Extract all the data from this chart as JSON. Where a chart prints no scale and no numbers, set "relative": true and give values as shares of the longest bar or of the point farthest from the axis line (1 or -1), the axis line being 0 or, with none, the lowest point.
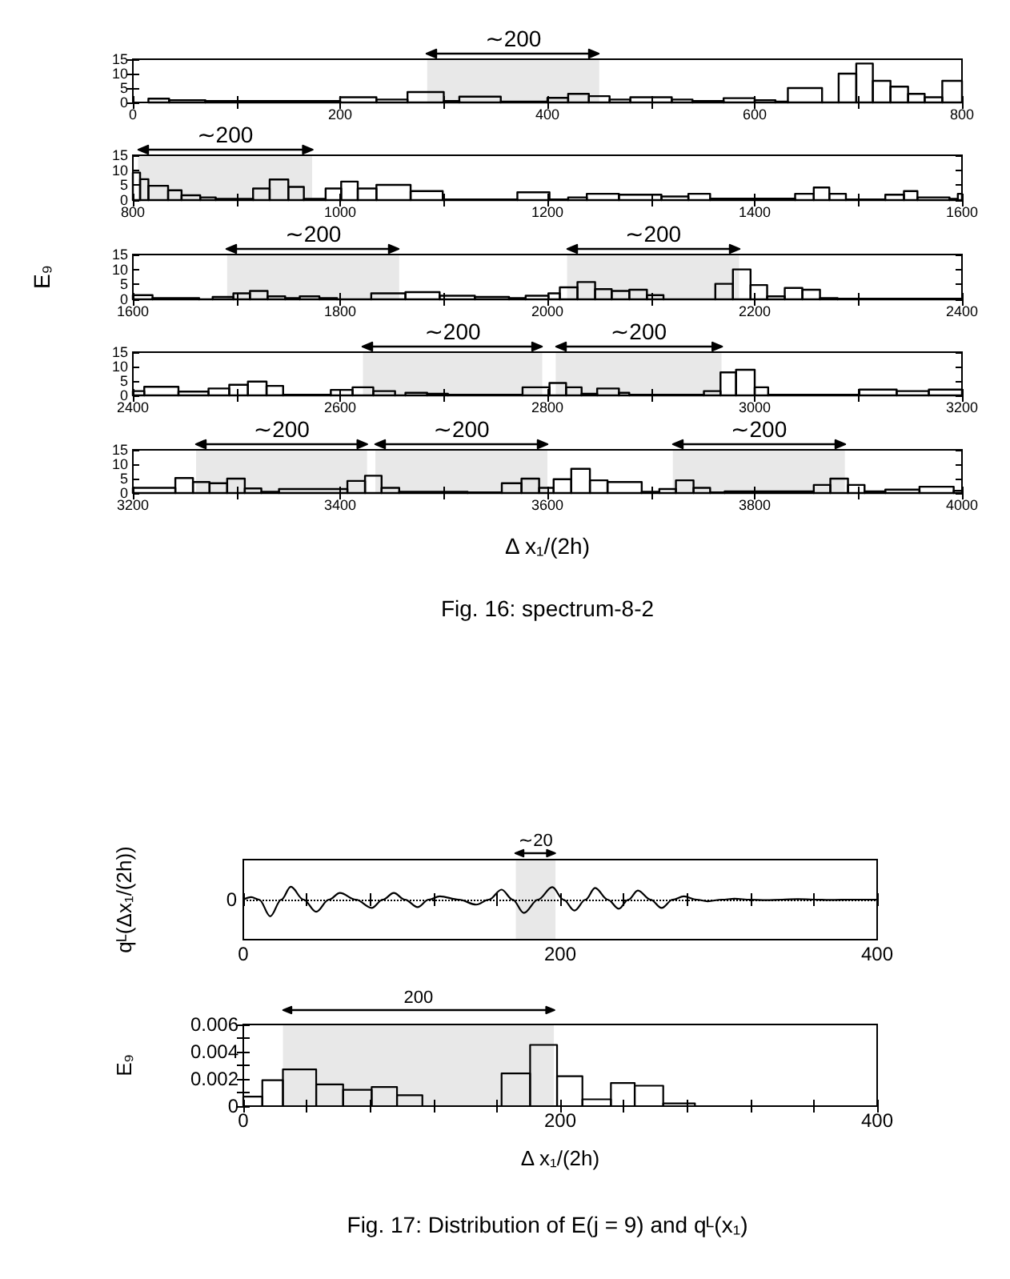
{
  "chart_data": [
    {
      "type": "histogram",
      "color": "#000000",
      "bins": [
        15,
        35,
        70,
        200,
        235,
        265,
        300,
        315,
        355,
        400,
        420,
        440,
        460,
        480,
        520,
        540,
        570,
        600,
        620,
        632,
        665,
        681,
        698,
        714,
        731,
        748,
        764,
        781,
        800
      ],
      "values": [
        1.3,
        0.8,
        0.5,
        1.8,
        1,
        3.6,
        0.5,
        2,
        0.3,
        1.6,
        3,
        2.2,
        1,
        1.8,
        1,
        0.5,
        1.5,
        0.8,
        0.3,
        5,
        0,
        10,
        13.5,
        7.5,
        5.5,
        3,
        1.8,
        7.5
      ],
      "xlim": [
        0,
        800
      ],
      "xticks": [
        0,
        {
          "value": 100,
          "label": null
        },
        200,
        {
          "value": 300,
          "label": null
        },
        400,
        {
          "value": 500,
          "label": null
        },
        600,
        {
          "value": 700,
          "label": null
        },
        800
      ],
      "ylim": [
        0,
        15
      ],
      "yticks": [
        0,
        5,
        10,
        15
      ],
      "bands": [
        {
          "axis": "x",
          "from": 284,
          "to": 450,
          "label": "∼200"
        }
      ]
    },
    {
      "type": "histogram",
      "color": "#000000",
      "bins": [
        800,
        807,
        815,
        834,
        847,
        865,
        880,
        916,
        932,
        950,
        965,
        986,
        1001,
        1017,
        1035,
        1068,
        1099,
        1171,
        1202,
        1220,
        1238,
        1269,
        1310,
        1336,
        1357,
        1439,
        1457,
        1472,
        1488,
        1526,
        1544,
        1557,
        1588,
        1596,
        1600
      ],
      "values": [
        9.2,
        7,
        4.8,
        3.3,
        1.6,
        0.9,
        0.4,
        3.9,
        6.9,
        4.4,
        0.4,
        3.9,
        6.2,
        3.9,
        5.1,
        3,
        0.2,
        2.6,
        0.2,
        0.9,
        2.1,
        1.8,
        1.2,
        2.1,
        0.5,
        2.1,
        4.2,
        2.1,
        0.2,
        1.8,
        3,
        0.9,
        0.4,
        2.1
      ],
      "xlim": [
        800,
        1600
      ],
      "xticks": [
        800,
        {
          "value": 900,
          "label": null
        },
        1000,
        {
          "value": 1100,
          "label": null
        },
        1200,
        {
          "value": 1300,
          "label": null
        },
        1400,
        {
          "value": 1500,
          "label": null
        },
        1600
      ],
      "ylim": [
        0,
        15
      ],
      "yticks": [
        0,
        5,
        10,
        15
      ],
      "bands": [
        {
          "axis": "x",
          "from": 805,
          "to": 973,
          "label": "∼200"
        }
      ]
    },
    {
      "type": "histogram",
      "color": "#000000",
      "ylabel": "E₉",
      "bins": [
        1600,
        1619,
        1664,
        1677,
        1697,
        1713,
        1730,
        1747,
        1761,
        1780,
        1797,
        1830,
        1863,
        1896,
        1930,
        1963,
        1979,
        2001,
        2012,
        2029,
        2046,
        2062,
        2079,
        2096,
        2112,
        2162,
        2179,
        2196,
        2212,
        2229,
        2246,
        2263,
        2280,
        2400
      ],
      "values": [
        1.4,
        0.4,
        0,
        0.8,
        2,
        2.8,
        1,
        0.4,
        1,
        0.4,
        0,
        2,
        2.4,
        1.2,
        0.8,
        0.4,
        1.2,
        2,
        4,
        5.8,
        3.4,
        2.8,
        3.2,
        1.4,
        0,
        5.2,
        10,
        4.8,
        1,
        3.8,
        3.2,
        0.4,
        0.2
      ],
      "xlim": [
        1600,
        2400
      ],
      "xticks": [
        1600,
        {
          "value": 1700,
          "label": null
        },
        1800,
        {
          "value": 1900,
          "label": null
        },
        2000,
        {
          "value": 2100,
          "label": null
        },
        2200,
        {
          "value": 2300,
          "label": null
        },
        2400
      ],
      "ylim": [
        0,
        15
      ],
      "yticks": [
        0,
        5,
        10,
        15
      ],
      "bands": [
        {
          "axis": "x",
          "from": 1691,
          "to": 1857,
          "label": "∼200"
        },
        {
          "axis": "x",
          "from": 2019,
          "to": 2185,
          "label": "∼200"
        }
      ]
    },
    {
      "type": "histogram",
      "color": "#000000",
      "bins": [
        2400,
        2411,
        2444,
        2473,
        2493,
        2511,
        2529,
        2545,
        2591,
        2612,
        2632,
        2653,
        2663,
        2684,
        2704,
        2776,
        2802,
        2818,
        2833,
        2848,
        2869,
        2879,
        2951,
        2967,
        2982,
        3000,
        3013,
        3101,
        3137,
        3168,
        3200
      ],
      "values": [
        1.5,
        3,
        1.3,
        2.4,
        3.7,
        4.8,
        3.3,
        0.2,
        1.9,
        2.8,
        1.5,
        0,
        0.9,
        0.6,
        0.2,
        2.8,
        4.3,
        2.8,
        0.6,
        2.4,
        0.9,
        0.2,
        1.5,
        8,
        8.9,
        2.8,
        0.2,
        2,
        1.5,
        2
      ],
      "xlim": [
        2400,
        3200
      ],
      "xticks": [
        2400,
        {
          "value": 2500,
          "label": null
        },
        2600,
        {
          "value": 2700,
          "label": null
        },
        2800,
        {
          "value": 2900,
          "label": null
        },
        3000,
        {
          "value": 3100,
          "label": null
        },
        3200
      ],
      "ylim": [
        0,
        15
      ],
      "yticks": [
        0,
        5,
        10,
        15
      ],
      "bands": [
        {
          "axis": "x",
          "from": 2622,
          "to": 2795,
          "label": "∼200"
        },
        {
          "axis": "x",
          "from": 2808,
          "to": 2968,
          "label": "∼200"
        }
      ]
    },
    {
      "type": "histogram",
      "color": "#000000",
      "xlabel": "Δ x₁/(2h)",
      "bins": [
        3200,
        3241,
        3258,
        3274,
        3291,
        3308,
        3324,
        3341,
        3407,
        3424,
        3440,
        3457,
        3523,
        3556,
        3575,
        3592,
        3606,
        3623,
        3641,
        3658,
        3691,
        3708,
        3724,
        3741,
        3757,
        3771,
        3857,
        3873,
        3890,
        3906,
        3926,
        3959,
        3992,
        4000
      ],
      "values": [
        1.8,
        5.2,
        3.8,
        3.4,
        5,
        1.6,
        0.4,
        1.4,
        4.2,
        6,
        1.8,
        0.4,
        0.2,
        3.4,
        5,
        1.8,
        4.8,
        8.4,
        4.4,
        3.8,
        0.4,
        1.4,
        4.4,
        1.8,
        0.2,
        0.6,
        2.8,
        5,
        2.8,
        0.6,
        1.2,
        2.2,
        0.8
      ],
      "xlim": [
        3200,
        4000
      ],
      "xticks": [
        3200,
        {
          "value": 3300,
          "label": null
        },
        3400,
        {
          "value": 3500,
          "label": null
        },
        3600,
        {
          "value": 3700,
          "label": null
        },
        3800,
        {
          "value": 3900,
          "label": null
        },
        4000
      ],
      "ylim": [
        0,
        15
      ],
      "yticks": [
        0,
        5,
        10,
        15
      ],
      "bands": [
        {
          "axis": "x",
          "from": 3261,
          "to": 3426,
          "label": "∼200"
        },
        {
          "axis": "x",
          "from": 3434,
          "to": 3600,
          "label": "∼200"
        },
        {
          "axis": "x",
          "from": 3721,
          "to": 3887,
          "label": "∼200"
        }
      ],
      "annotations": [
        "Fig. 16: spectrum-8-2"
      ]
    },
    {
      "type": "line",
      "color": "#000000",
      "relative": true,
      "marker": "none",
      "ylabel": "qᴸ(Δx₁/(2h))",
      "x": [
        0,
        5,
        10,
        17,
        24,
        30,
        38,
        46,
        54,
        61,
        71,
        81,
        88,
        95,
        102,
        110,
        117,
        124,
        136,
        147,
        155,
        163,
        170,
        177,
        186,
        195,
        202,
        209,
        216,
        222,
        230,
        237,
        243,
        249,
        257,
        264,
        271,
        278,
        286,
        293,
        302,
        310,
        320,
        330,
        340,
        350,
        360,
        370,
        385,
        400
      ],
      "values": [
        0,
        0.15,
        0,
        -1,
        0,
        0.77,
        0,
        -0.73,
        0,
        0.4,
        0,
        -0.5,
        0,
        0.4,
        0,
        -0.45,
        0,
        0.2,
        0,
        -0.3,
        0,
        0.6,
        0,
        -0.8,
        0,
        0.75,
        0,
        -0.65,
        0,
        0.7,
        0,
        -0.55,
        0,
        0.55,
        0,
        -0.5,
        0,
        0.2,
        0,
        -0.1,
        0,
        0.05,
        0,
        -0.03,
        0,
        0.03,
        0,
        -0.02,
        0,
        0
      ],
      "xlim": [
        0,
        400
      ],
      "xticks": [
        0,
        {
          "value": 40,
          "label": null
        },
        {
          "value": 80,
          "label": null
        },
        {
          "value": 120,
          "label": null
        },
        {
          "value": 160,
          "label": null
        },
        200,
        {
          "value": 240,
          "label": null
        },
        {
          "value": 280,
          "label": null
        },
        {
          "value": 320,
          "label": null
        },
        {
          "value": 360,
          "label": null
        },
        400
      ],
      "ref_lines": [
        {
          "axis": "y",
          "value": 0,
          "label": "0",
          "line_style": "dotted"
        }
      ],
      "bands": [
        {
          "axis": "x",
          "from": 172,
          "to": 197,
          "label": "∼20"
        }
      ]
    },
    {
      "type": "histogram",
      "color": "#000000",
      "ylabel": "E₉",
      "xlabel": "Δ x₁/(2h)",
      "bins": [
        0,
        12,
        25,
        46,
        63,
        81,
        97,
        113,
        163,
        181,
        198,
        214,
        232,
        247,
        265,
        285,
        400
      ],
      "values": [
        0.0007,
        0.0019,
        0.0027,
        0.0016,
        0.0012,
        0.0014,
        0.0008,
        0,
        0.0024,
        0.0045,
        0.0022,
        0.0005,
        0.0017,
        0.0015,
        0.0002,
        0
      ],
      "xlim": [
        0,
        400
      ],
      "xticks": [
        0,
        {
          "value": 40,
          "label": null
        },
        {
          "value": 80,
          "label": null
        },
        {
          "value": 120,
          "label": null
        },
        {
          "value": 160,
          "label": null
        },
        200,
        {
          "value": 240,
          "label": null
        },
        {
          "value": 280,
          "label": null
        },
        {
          "value": 320,
          "label": null
        },
        {
          "value": 360,
          "label": null
        },
        400
      ],
      "ylim": [
        0,
        0.006
      ],
      "yticks": [
        0,
        {
          "value": 0.001,
          "label": null
        },
        0.002,
        {
          "value": 0.003,
          "label": null
        },
        0.004,
        {
          "value": 0.005,
          "label": null
        },
        0.006
      ],
      "bands": [
        {
          "axis": "x",
          "from": 25,
          "to": 196,
          "label": "200"
        }
      ],
      "annotations": [
        "Fig. 17: Distribution of E(j = 9) and qᴸ(x₁)"
      ]
    }
  ]
}
